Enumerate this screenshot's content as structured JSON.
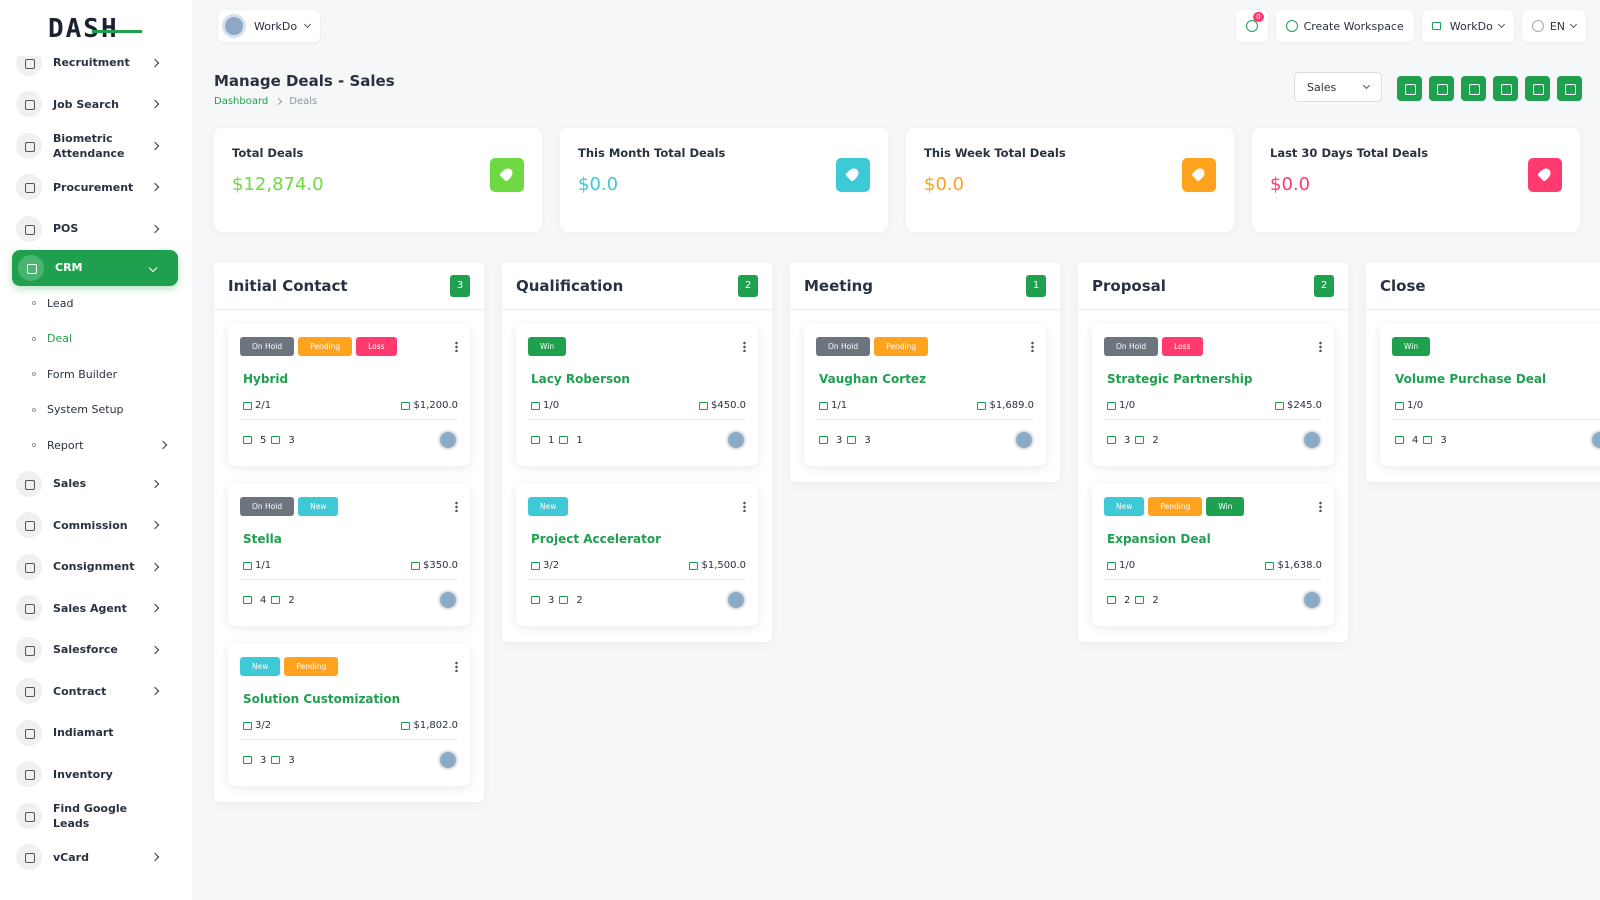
{
  "sidebar": {
    "brand": "DASH",
    "items": [
      {
        "label": "Recruitment",
        "has_submenu": true
      },
      {
        "label": "Job Search",
        "has_submenu": true
      },
      {
        "label": "Biometric Attendance",
        "has_submenu": true
      },
      {
        "label": "Procurement",
        "has_submenu": true
      },
      {
        "label": "POS",
        "has_submenu": true
      },
      {
        "label": "CRM",
        "has_submenu": true,
        "active": true,
        "children": [
          {
            "label": "Lead"
          },
          {
            "label": "Deal",
            "active": true
          },
          {
            "label": "Form Builder"
          },
          {
            "label": "System Setup"
          },
          {
            "label": "Report",
            "has_submenu": true
          }
        ]
      },
      {
        "label": "Sales",
        "has_submenu": true
      },
      {
        "label": "Commission",
        "has_submenu": true
      },
      {
        "label": "Consignment",
        "has_submenu": true
      },
      {
        "label": "Sales Agent",
        "has_submenu": true
      },
      {
        "label": "Salesforce",
        "has_submenu": true
      },
      {
        "label": "Contract",
        "has_submenu": true
      },
      {
        "label": "Indiamart",
        "has_submenu": false
      },
      {
        "label": "Inventory",
        "has_submenu": false
      },
      {
        "label": "Find Google Leads",
        "has_submenu": false
      },
      {
        "label": "vCard",
        "has_submenu": true
      }
    ]
  },
  "topbar": {
    "workspace": "WorkDo",
    "notification_count": "0",
    "create_workspace": "Create Workspace",
    "workspace_menu": "WorkDo",
    "language": "EN"
  },
  "header": {
    "title": "Manage Deals - Sales",
    "breadcrumb": [
      "Dashboard",
      "Deals"
    ],
    "pipeline": "Sales"
  },
  "stats": [
    {
      "label": "Total Deals",
      "value": "$12,874.0",
      "color": "#6fd943"
    },
    {
      "label": "This Month Total Deals",
      "value": "$0.0",
      "color": "#3ec9d6"
    },
    {
      "label": "This Week Total Deals",
      "value": "$0.0",
      "color": "#ffa21d"
    },
    {
      "label": "Last 30 Days Total Deals",
      "value": "$0.0",
      "color": "#ff3a6e"
    }
  ],
  "columns": [
    {
      "name": "Initial Contact",
      "count": 3,
      "deals": [
        {
          "tags": [
            {
              "label": "On Hold",
              "color": "#6c757d"
            },
            {
              "label": "Pending",
              "color": "#ffa21d"
            },
            {
              "label": "Loss",
              "color": "#ff3a6e"
            }
          ],
          "name": "Hybrid",
          "tasks": "2/1",
          "price": "$1,200.0",
          "products": 5,
          "users": 3
        },
        {
          "tags": [
            {
              "label": "On Hold",
              "color": "#6c757d"
            },
            {
              "label": "New",
              "color": "#3ec9d6"
            }
          ],
          "name": "Stella",
          "tasks": "1/1",
          "price": "$350.0",
          "products": 4,
          "users": 2
        },
        {
          "tags": [
            {
              "label": "New",
              "color": "#3ec9d6"
            },
            {
              "label": "Pending",
              "color": "#ffa21d"
            }
          ],
          "name": "Solution Customization",
          "tasks": "3/2",
          "price": "$1,802.0",
          "products": 3,
          "users": 3
        }
      ]
    },
    {
      "name": "Qualification",
      "count": 2,
      "deals": [
        {
          "tags": [
            {
              "label": "Win",
              "color": "#1fa04f"
            }
          ],
          "name": "Lacy Roberson",
          "tasks": "1/0",
          "price": "$450.0",
          "products": 1,
          "users": 1
        },
        {
          "tags": [
            {
              "label": "New",
              "color": "#3ec9d6"
            }
          ],
          "name": "Project Accelerator",
          "tasks": "3/2",
          "price": "$1,500.0",
          "products": 3,
          "users": 2
        }
      ]
    },
    {
      "name": "Meeting",
      "count": 1,
      "deals": [
        {
          "tags": [
            {
              "label": "On Hold",
              "color": "#6c757d"
            },
            {
              "label": "Pending",
              "color": "#ffa21d"
            }
          ],
          "name": "Vaughan Cortez",
          "tasks": "1/1",
          "price": "$1,689.0",
          "products": 3,
          "users": 3
        }
      ]
    },
    {
      "name": "Proposal",
      "count": 2,
      "deals": [
        {
          "tags": [
            {
              "label": "On Hold",
              "color": "#6c757d"
            },
            {
              "label": "Loss",
              "color": "#ff3a6e"
            }
          ],
          "name": "Strategic Partnership",
          "tasks": "1/0",
          "price": "$245.0",
          "products": 3,
          "users": 2
        },
        {
          "tags": [
            {
              "label": "New",
              "color": "#3ec9d6"
            },
            {
              "label": "Pending",
              "color": "#ffa21d"
            },
            {
              "label": "Win",
              "color": "#1fa04f"
            }
          ],
          "name": "Expansion Deal",
          "tasks": "1/0",
          "price": "$1,638.0",
          "products": 2,
          "users": 2
        }
      ]
    },
    {
      "name": "Close",
      "deals": [
        {
          "tags": [
            {
              "label": "Win",
              "color": "#1fa04f"
            }
          ],
          "name": "Volume Purchase Deal",
          "tasks": "1/0",
          "products": 4,
          "users": 3
        }
      ]
    }
  ]
}
